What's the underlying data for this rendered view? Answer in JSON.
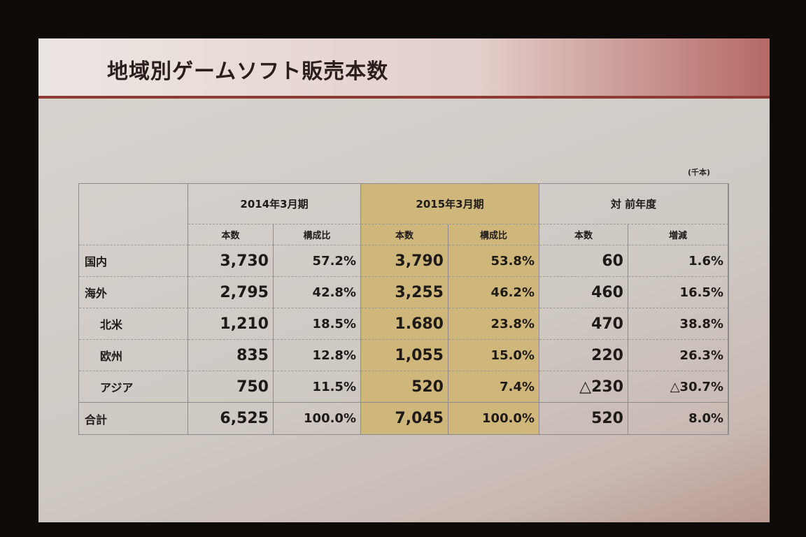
{
  "title": "地域別ゲームソフト販売本数",
  "unit": "(千本)",
  "table": {
    "group_headers": [
      "2014年3月期",
      "2015年3月期",
      "対 前年度"
    ],
    "sub_headers": [
      "本数",
      "構成比",
      "本数",
      "構成比",
      "本数",
      "増減"
    ],
    "rows": [
      [
        "国内",
        "3,730",
        "57.2%",
        "3,790",
        "53.8%",
        "60",
        "1.6%"
      ],
      [
        "海外",
        "2,795",
        "42.8%",
        "3,255",
        "46.2%",
        "460",
        "16.5%"
      ],
      [
        "北米",
        "1,210",
        "18.5%",
        "1.680",
        "23.8%",
        "470",
        "38.8%"
      ],
      [
        "欧州",
        "835",
        "12.8%",
        "1,055",
        "15.0%",
        "220",
        "26.3%"
      ],
      [
        "アジア",
        "750",
        "11.5%",
        "520",
        "7.4%",
        "△230",
        "△30.7%"
      ],
      [
        "合計",
        "6,525",
        "100.0%",
        "7,045",
        "100.0%",
        "520",
        "8.0%"
      ]
    ]
  }
}
